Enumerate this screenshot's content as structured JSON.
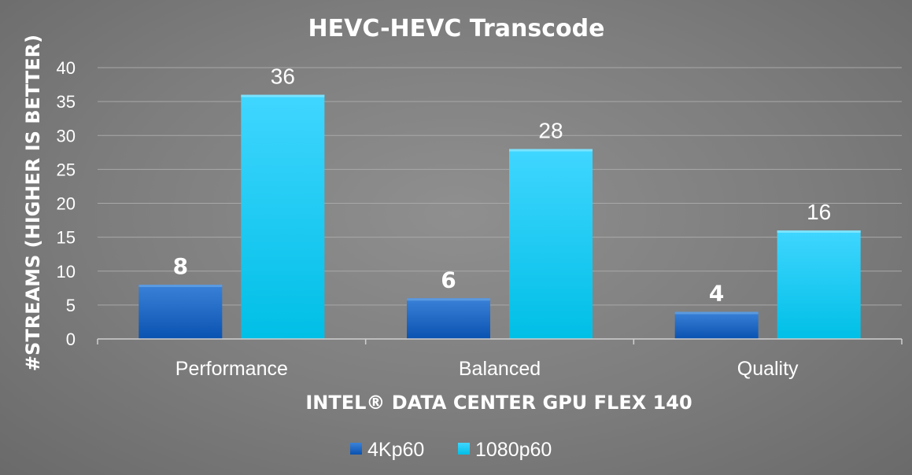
{
  "chart_data": {
    "type": "bar",
    "title": "HEVC-HEVC Transcode",
    "xlabel": "INTEL® DATA CENTER GPU FLEX 140",
    "ylabel": "#STREAMS (HIGHER IS BETTER)",
    "categories": [
      "Performance",
      "Balanced",
      "Quality"
    ],
    "series": [
      {
        "name": "4Kp60",
        "values": [
          8,
          6,
          4
        ],
        "color": "#1a6fd0",
        "color_dark": "#0a4fa8"
      },
      {
        "name": "1080p60",
        "values": [
          36,
          28,
          16
        ],
        "color": "#2fd0ff",
        "color_dark": "#00bde6"
      }
    ],
    "ylim": [
      0,
      40
    ],
    "yticks": [
      0,
      5,
      10,
      15,
      20,
      25,
      30,
      35,
      40
    ],
    "grid": true,
    "legend": "bottom-center"
  }
}
